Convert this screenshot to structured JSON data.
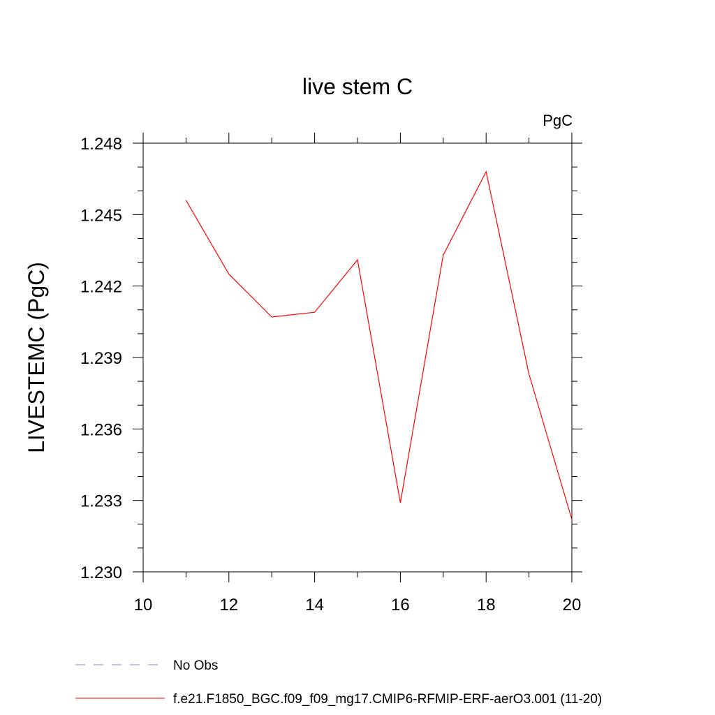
{
  "chart_data": {
    "type": "line",
    "title": "live stem C",
    "units_label": "PgC",
    "ylabel": "LIVESTEMC  (PgC)",
    "xlabel": "",
    "xlim": [
      10,
      20
    ],
    "ylim": [
      1.23,
      1.248
    ],
    "x_ticks": [
      10,
      12,
      14,
      16,
      18,
      20
    ],
    "x_tick_labels": [
      "10",
      "12",
      "14",
      "16",
      "18",
      "20"
    ],
    "y_ticks": [
      1.23,
      1.233,
      1.236,
      1.239,
      1.242,
      1.245,
      1.248
    ],
    "y_tick_labels": [
      "1.230",
      "1.233",
      "1.236",
      "1.239",
      "1.242",
      "1.245",
      "1.248"
    ],
    "grid": false,
    "series": [
      {
        "name": "f.e21.F1850_BGC.f09_f09_mg17.CMIP6-RFMIP-ERF-aerO3.001 (11-20)",
        "color": "#ff0000",
        "dash": "solid",
        "x": [
          11,
          12,
          13,
          14,
          15,
          16,
          17,
          18,
          19,
          20
        ],
        "y": [
          1.2456,
          1.2425,
          1.2407,
          1.2409,
          1.2431,
          1.2329,
          1.2433,
          1.2468,
          1.2383,
          1.2322
        ]
      }
    ],
    "legend": {
      "placement": "bottom",
      "entries": [
        {
          "label": "No Obs",
          "color": "#8f7fc4",
          "dash": "dashed"
        },
        {
          "label": "f.e21.F1850_BGC.f09_f09_mg17.CMIP6-RFMIP-ERF-aerO3.001 (11-20)",
          "color": "#ff0000",
          "dash": "solid"
        }
      ]
    }
  }
}
